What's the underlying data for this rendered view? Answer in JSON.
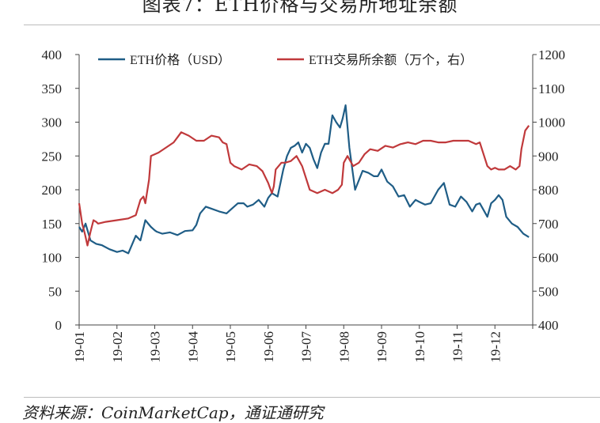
{
  "header": {
    "title": "图表7：ETH价格与交易所地址余额"
  },
  "footer": {
    "source": "资料来源：CoinMarketCap，通证通研究"
  },
  "chart_data": {
    "type": "line",
    "title": "图表7：ETH价格与交易所地址余额",
    "categories": [
      "19-01",
      "19-02",
      "19-03",
      "19-04",
      "19-05",
      "19-06",
      "19-07",
      "19-08",
      "19-09",
      "19-10",
      "19-11",
      "19-12"
    ],
    "left_axis": {
      "ylim": [
        0,
        400
      ],
      "ticks": [
        "0",
        "50",
        "100",
        "150",
        "200",
        "250",
        "300",
        "350",
        "400"
      ]
    },
    "right_axis": {
      "ylim": [
        400,
        1200
      ],
      "ticks": [
        "400",
        "500",
        "600",
        "700",
        "800",
        "900",
        "1000",
        "1100",
        "1200"
      ]
    },
    "legend_position": "top",
    "grid": false,
    "colors": {
      "price": "#1f5d86",
      "balance": "#c0393b"
    },
    "series": [
      {
        "name": "ETH价格（USD）",
        "axis": "left",
        "x": [
          0,
          0.08,
          0.17,
          0.3,
          0.45,
          0.6,
          0.8,
          1.0,
          1.15,
          1.3,
          1.5,
          1.62,
          1.75,
          1.9,
          2.0,
          2.05,
          2.2,
          2.4,
          2.6,
          2.8,
          3.0,
          3.1,
          3.2,
          3.35,
          3.5,
          3.7,
          3.9,
          4.0,
          4.2,
          4.35,
          4.45,
          4.6,
          4.75,
          4.9,
          5.0,
          5.1,
          5.25,
          5.4,
          5.5,
          5.6,
          5.7,
          5.8,
          5.9,
          6.0,
          6.1,
          6.2,
          6.3,
          6.4,
          6.5,
          6.6,
          6.7,
          6.8,
          6.9,
          6.97,
          7.05,
          7.15,
          7.3,
          7.5,
          7.65,
          7.8,
          7.9,
          8.0,
          8.15,
          8.3,
          8.45,
          8.6,
          8.75,
          8.9,
          9.0,
          9.15,
          9.3,
          9.5,
          9.65,
          9.8,
          9.95,
          10.1,
          10.25,
          10.4,
          10.5,
          10.6,
          10.7,
          10.8,
          10.9,
          11.0,
          11.1,
          11.2,
          11.3,
          11.45,
          11.6,
          11.75,
          11.9
        ],
        "values": [
          145,
          138,
          150,
          125,
          120,
          118,
          112,
          108,
          110,
          106,
          132,
          125,
          155,
          145,
          140,
          138,
          135,
          137,
          133,
          139,
          140,
          148,
          165,
          175,
          172,
          168,
          165,
          170,
          180,
          180,
          175,
          178,
          185,
          175,
          188,
          195,
          190,
          230,
          250,
          262,
          265,
          270,
          255,
          268,
          262,
          245,
          232,
          255,
          268,
          268,
          310,
          300,
          292,
          305,
          325,
          262,
          200,
          228,
          225,
          220,
          220,
          230,
          212,
          205,
          190,
          192,
          175,
          185,
          182,
          178,
          180,
          200,
          210,
          178,
          175,
          190,
          182,
          168,
          178,
          180,
          170,
          160,
          180,
          185,
          192,
          185,
          160,
          150,
          145,
          135,
          130
        ],
        "labels_visible": false
      },
      {
        "name": "ETH交易所余额（万个，右）",
        "axis": "right",
        "x": [
          0,
          0.08,
          0.15,
          0.22,
          0.3,
          0.38,
          0.45,
          0.5,
          0.7,
          1.0,
          1.3,
          1.5,
          1.62,
          1.7,
          1.75,
          1.85,
          1.9,
          2.1,
          2.3,
          2.5,
          2.6,
          2.7,
          2.9,
          3.1,
          3.3,
          3.5,
          3.7,
          3.8,
          3.9,
          4.0,
          4.1,
          4.3,
          4.5,
          4.7,
          4.85,
          5.0,
          5.1,
          5.15,
          5.2,
          5.35,
          5.45,
          5.6,
          5.75,
          5.9,
          6.1,
          6.3,
          6.5,
          6.7,
          6.85,
          6.95,
          7.0,
          7.1,
          7.25,
          7.4,
          7.55,
          7.7,
          7.9,
          8.1,
          8.3,
          8.5,
          8.7,
          8.9,
          9.1,
          9.3,
          9.5,
          9.7,
          9.9,
          10.1,
          10.3,
          10.5,
          10.6,
          10.7,
          10.8,
          10.9,
          11.0,
          11.1,
          11.25,
          11.4,
          11.55,
          11.65,
          11.7,
          11.8,
          11.9
        ],
        "values": [
          760,
          700,
          670,
          635,
          675,
          710,
          705,
          700,
          705,
          710,
          715,
          725,
          770,
          780,
          760,
          830,
          900,
          910,
          925,
          940,
          955,
          970,
          960,
          945,
          945,
          960,
          955,
          940,
          935,
          880,
          870,
          860,
          875,
          870,
          855,
          820,
          790,
          810,
          860,
          880,
          880,
          885,
          900,
          870,
          800,
          790,
          800,
          790,
          800,
          815,
          880,
          900,
          870,
          880,
          905,
          920,
          915,
          930,
          925,
          935,
          940,
          935,
          945,
          945,
          940,
          940,
          945,
          945,
          945,
          935,
          940,
          905,
          870,
          860,
          865,
          860,
          860,
          870,
          860,
          870,
          920,
          975,
          990
        ],
        "labels_visible": false
      }
    ]
  }
}
